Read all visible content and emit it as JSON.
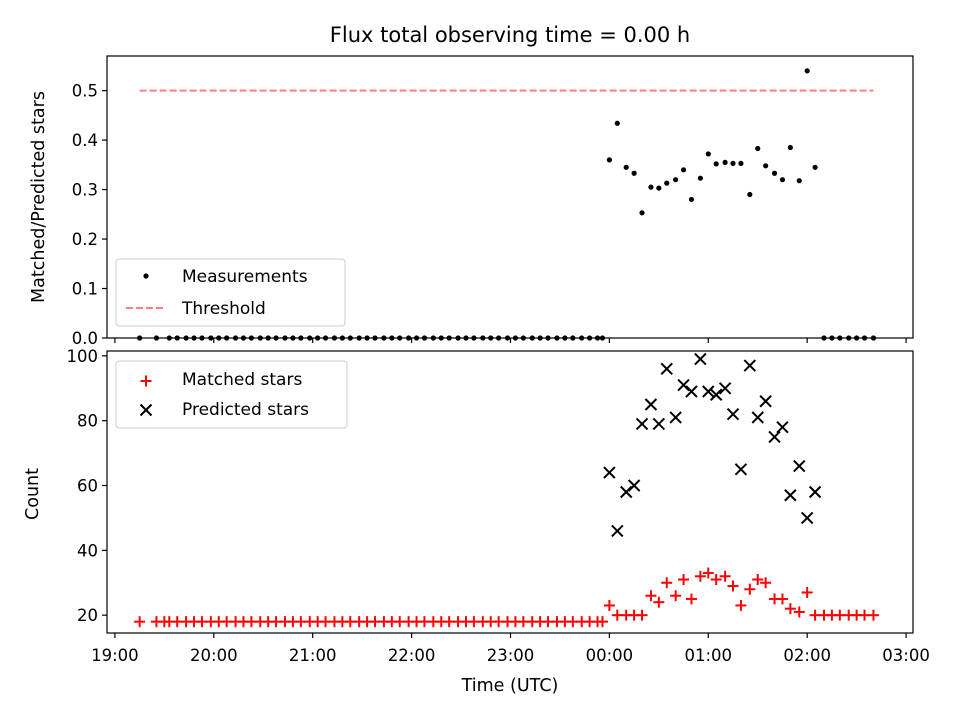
{
  "chart_data": [
    {
      "type": "scatter",
      "title": "Flux total observing time = 0.00 h",
      "ylabel": "Matched/Predicted stars",
      "xlabel": "",
      "x_unit": "hours relative to 00:00 UTC (negative = previous day)",
      "xlim": [
        -5.08,
        3.07
      ],
      "ylim": [
        0.0,
        0.57
      ],
      "yticks": [
        0.0,
        0.1,
        0.2,
        0.3,
        0.4,
        0.5
      ],
      "ytick_labels": [
        "0.0",
        "0.1",
        "0.2",
        "0.3",
        "0.4",
        "0.5"
      ],
      "grid": false,
      "legend": {
        "placement": "lower-left",
        "entries": [
          "Measurements",
          "Threshold"
        ]
      },
      "series": [
        {
          "name": "Measurements",
          "marker": "dot",
          "color": "#000000",
          "points": [
            [
              -4.75,
              0
            ],
            [
              -4.58,
              0
            ],
            [
              -4.45,
              0
            ],
            [
              -4.37,
              0
            ],
            [
              -4.28,
              0
            ],
            [
              -4.2,
              0
            ],
            [
              -4.12,
              0
            ],
            [
              -4.03,
              0
            ],
            [
              -3.95,
              0
            ],
            [
              -3.87,
              0
            ],
            [
              -3.78,
              0
            ],
            [
              -3.7,
              0
            ],
            [
              -3.62,
              0
            ],
            [
              -3.53,
              0
            ],
            [
              -3.45,
              0
            ],
            [
              -3.37,
              0
            ],
            [
              -3.28,
              0
            ],
            [
              -3.2,
              0
            ],
            [
              -3.12,
              0
            ],
            [
              -3.03,
              0
            ],
            [
              -2.95,
              0
            ],
            [
              -2.87,
              0
            ],
            [
              -2.78,
              0
            ],
            [
              -2.7,
              0
            ],
            [
              -2.62,
              0
            ],
            [
              -2.53,
              0
            ],
            [
              -2.45,
              0
            ],
            [
              -2.37,
              0
            ],
            [
              -2.28,
              0
            ],
            [
              -2.2,
              0
            ],
            [
              -2.12,
              0
            ],
            [
              -2.03,
              0
            ],
            [
              -1.95,
              0
            ],
            [
              -1.87,
              0
            ],
            [
              -1.78,
              0
            ],
            [
              -1.7,
              0
            ],
            [
              -1.62,
              0
            ],
            [
              -1.53,
              0
            ],
            [
              -1.45,
              0
            ],
            [
              -1.37,
              0
            ],
            [
              -1.28,
              0
            ],
            [
              -1.2,
              0
            ],
            [
              -1.12,
              0
            ],
            [
              -1.03,
              0
            ],
            [
              -0.95,
              0
            ],
            [
              -0.87,
              0
            ],
            [
              -0.78,
              0
            ],
            [
              -0.7,
              0
            ],
            [
              -0.62,
              0
            ],
            [
              -0.53,
              0
            ],
            [
              -0.45,
              0
            ],
            [
              -0.37,
              0
            ],
            [
              -0.28,
              0
            ],
            [
              -0.2,
              0
            ],
            [
              -0.12,
              0
            ],
            [
              -0.07,
              0
            ],
            [
              0.0,
              0.36
            ],
            [
              0.08,
              0.434
            ],
            [
              0.17,
              0.345
            ],
            [
              0.25,
              0.333
            ],
            [
              0.33,
              0.253
            ],
            [
              0.42,
              0.305
            ],
            [
              0.5,
              0.303
            ],
            [
              0.58,
              0.313
            ],
            [
              0.67,
              0.32
            ],
            [
              0.75,
              0.34
            ],
            [
              0.83,
              0.28
            ],
            [
              0.92,
              0.323
            ],
            [
              1.0,
              0.372
            ],
            [
              1.08,
              0.352
            ],
            [
              1.17,
              0.355
            ],
            [
              1.25,
              0.353
            ],
            [
              1.33,
              0.353
            ],
            [
              1.42,
              0.29
            ],
            [
              1.5,
              0.383
            ],
            [
              1.58,
              0.348
            ],
            [
              1.67,
              0.333
            ],
            [
              1.75,
              0.32
            ],
            [
              1.83,
              0.385
            ],
            [
              1.92,
              0.318
            ],
            [
              2.0,
              0.54
            ],
            [
              2.08,
              0.345
            ],
            [
              2.17,
              0
            ],
            [
              2.25,
              0
            ],
            [
              2.33,
              0
            ],
            [
              2.42,
              0
            ],
            [
              2.5,
              0
            ],
            [
              2.58,
              0
            ],
            [
              2.67,
              0
            ]
          ]
        },
        {
          "name": "Threshold",
          "marker": "dashed-line",
          "color": "#ff7f7f",
          "x": [
            -4.75,
            2.67
          ],
          "y": [
            0.5,
            0.5
          ]
        }
      ]
    },
    {
      "type": "scatter",
      "title": "",
      "ylabel": "Count",
      "xlabel": "Time (UTC)",
      "xlim": [
        -5.08,
        3.07
      ],
      "ylim": [
        14.5,
        101.5
      ],
      "yticks": [
        20,
        40,
        60,
        80,
        100
      ],
      "ytick_labels": [
        "20",
        "40",
        "60",
        "80",
        "100"
      ],
      "xticks": [
        -5,
        -4,
        -3,
        -2,
        -1,
        0,
        1,
        2,
        3
      ],
      "xtick_labels": [
        "19:00",
        "20:00",
        "21:00",
        "22:00",
        "23:00",
        "00:00",
        "01:00",
        "02:00",
        "03:00"
      ],
      "grid": false,
      "legend": {
        "placement": "upper-left",
        "entries": [
          "Matched stars",
          "Predicted stars"
        ]
      },
      "series": [
        {
          "name": "Matched stars",
          "marker": "plus",
          "color": "#ff0000",
          "points": [
            [
              -4.75,
              18
            ],
            [
              -4.58,
              18
            ],
            [
              -4.5,
              18
            ],
            [
              -4.45,
              18
            ],
            [
              -4.37,
              18
            ],
            [
              -4.28,
              18
            ],
            [
              -4.2,
              18
            ],
            [
              -4.12,
              18
            ],
            [
              -4.03,
              18
            ],
            [
              -3.95,
              18
            ],
            [
              -3.87,
              18
            ],
            [
              -3.78,
              18
            ],
            [
              -3.7,
              18
            ],
            [
              -3.62,
              18
            ],
            [
              -3.53,
              18
            ],
            [
              -3.45,
              18
            ],
            [
              -3.37,
              18
            ],
            [
              -3.28,
              18
            ],
            [
              -3.2,
              18
            ],
            [
              -3.12,
              18
            ],
            [
              -3.03,
              18
            ],
            [
              -2.95,
              18
            ],
            [
              -2.87,
              18
            ],
            [
              -2.78,
              18
            ],
            [
              -2.7,
              18
            ],
            [
              -2.62,
              18
            ],
            [
              -2.53,
              18
            ],
            [
              -2.45,
              18
            ],
            [
              -2.37,
              18
            ],
            [
              -2.28,
              18
            ],
            [
              -2.2,
              18
            ],
            [
              -2.12,
              18
            ],
            [
              -2.03,
              18
            ],
            [
              -1.95,
              18
            ],
            [
              -1.87,
              18
            ],
            [
              -1.78,
              18
            ],
            [
              -1.7,
              18
            ],
            [
              -1.62,
              18
            ],
            [
              -1.53,
              18
            ],
            [
              -1.45,
              18
            ],
            [
              -1.37,
              18
            ],
            [
              -1.28,
              18
            ],
            [
              -1.2,
              18
            ],
            [
              -1.12,
              18
            ],
            [
              -1.03,
              18
            ],
            [
              -0.95,
              18
            ],
            [
              -0.87,
              18
            ],
            [
              -0.78,
              18
            ],
            [
              -0.7,
              18
            ],
            [
              -0.62,
              18
            ],
            [
              -0.53,
              18
            ],
            [
              -0.45,
              18
            ],
            [
              -0.37,
              18
            ],
            [
              -0.28,
              18
            ],
            [
              -0.2,
              18
            ],
            [
              -0.12,
              18
            ],
            [
              -0.07,
              18
            ],
            [
              0.0,
              23
            ],
            [
              0.08,
              20
            ],
            [
              0.17,
              20
            ],
            [
              0.25,
              20
            ],
            [
              0.33,
              20
            ],
            [
              0.42,
              26
            ],
            [
              0.5,
              24
            ],
            [
              0.58,
              30
            ],
            [
              0.67,
              26
            ],
            [
              0.75,
              31
            ],
            [
              0.83,
              25
            ],
            [
              0.92,
              32
            ],
            [
              1.0,
              33
            ],
            [
              1.08,
              31
            ],
            [
              1.17,
              32
            ],
            [
              1.25,
              29
            ],
            [
              1.33,
              23
            ],
            [
              1.42,
              28
            ],
            [
              1.5,
              31
            ],
            [
              1.58,
              30
            ],
            [
              1.67,
              25
            ],
            [
              1.75,
              25
            ],
            [
              1.83,
              22
            ],
            [
              1.92,
              21
            ],
            [
              2.0,
              27
            ],
            [
              2.08,
              20
            ],
            [
              2.17,
              20
            ],
            [
              2.25,
              20
            ],
            [
              2.33,
              20
            ],
            [
              2.42,
              20
            ],
            [
              2.5,
              20
            ],
            [
              2.58,
              20
            ],
            [
              2.67,
              20
            ]
          ]
        },
        {
          "name": "Predicted stars",
          "marker": "x",
          "color": "#000000",
          "points": [
            [
              0.0,
              64
            ],
            [
              0.08,
              46
            ],
            [
              0.17,
              58
            ],
            [
              0.25,
              60
            ],
            [
              0.33,
              79
            ],
            [
              0.42,
              85
            ],
            [
              0.5,
              79
            ],
            [
              0.58,
              96
            ],
            [
              0.67,
              81
            ],
            [
              0.75,
              91
            ],
            [
              0.83,
              89
            ],
            [
              0.92,
              99
            ],
            [
              1.0,
              89
            ],
            [
              1.08,
              88
            ],
            [
              1.17,
              90
            ],
            [
              1.25,
              82
            ],
            [
              1.33,
              65
            ],
            [
              1.42,
              97
            ],
            [
              1.5,
              81
            ],
            [
              1.58,
              86
            ],
            [
              1.67,
              75
            ],
            [
              1.75,
              78
            ],
            [
              1.83,
              57
            ],
            [
              1.92,
              66
            ],
            [
              2.0,
              50
            ],
            [
              2.08,
              58
            ]
          ]
        }
      ]
    }
  ]
}
